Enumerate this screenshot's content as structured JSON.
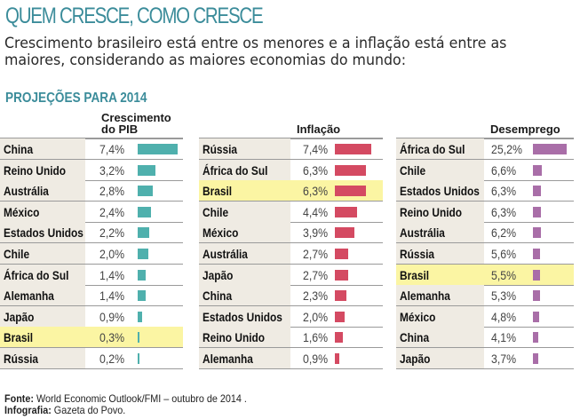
{
  "header": {
    "title": "QUEM CRESCE, COMO CRESCE",
    "subtitle_line1": "Crescimento brasileiro está entre os menores e a inflação está entre as",
    "subtitle_line2": "maiores, considerando as maiores economias do mundo:",
    "section": "PROJEÇÕES PARA 2014"
  },
  "colors": {
    "accent": "#3b8c9a",
    "pib": "#4fb0ad",
    "inflacao": "#d44a62",
    "desemprego": "#a96ea8",
    "highlight": "#fbf5a3",
    "name_bg": "#efebe3"
  },
  "chart_data": [
    {
      "type": "table",
      "title": "Crescimento do PIB",
      "title_line1": "Crescimento",
      "title_line2": "do PIB",
      "unit": "%",
      "highlight": "Brasil",
      "rows": [
        {
          "country": "China",
          "value": 7.4,
          "label": "7,4%"
        },
        {
          "country": "Reino Unido",
          "value": 3.2,
          "label": "3,2%"
        },
        {
          "country": "Austrália",
          "value": 2.8,
          "label": "2,8%"
        },
        {
          "country": "México",
          "value": 2.4,
          "label": "2,4%"
        },
        {
          "country": "Estados Unidos",
          "value": 2.2,
          "label": "2,2%"
        },
        {
          "country": "Chile",
          "value": 2.0,
          "label": "2,0%"
        },
        {
          "country": "África do Sul",
          "value": 1.4,
          "label": "1,4%"
        },
        {
          "country": "Alemanha",
          "value": 1.4,
          "label": "1,4%"
        },
        {
          "country": "Japão",
          "value": 0.9,
          "label": "0,9%"
        },
        {
          "country": "Brasil",
          "value": 0.3,
          "label": "0,3%"
        },
        {
          "country": "Rússia",
          "value": 0.2,
          "label": "0,2%"
        }
      ]
    },
    {
      "type": "table",
      "title": "Inflação",
      "unit": "%",
      "highlight": "Brasil",
      "rows": [
        {
          "country": "Rússia",
          "value": 7.4,
          "label": "7,4%"
        },
        {
          "country": "África do Sul",
          "value": 6.3,
          "label": "6,3%"
        },
        {
          "country": "Brasil",
          "value": 6.3,
          "label": "6,3%"
        },
        {
          "country": "Chile",
          "value": 4.4,
          "label": "4,4%"
        },
        {
          "country": "México",
          "value": 3.9,
          "label": "3,9%"
        },
        {
          "country": "Austrália",
          "value": 2.7,
          "label": "2,7%"
        },
        {
          "country": "Japão",
          "value": 2.7,
          "label": "2,7%"
        },
        {
          "country": "China",
          "value": 2.3,
          "label": "2,3%"
        },
        {
          "country": "Estados Unidos",
          "value": 2.0,
          "label": "2,0%"
        },
        {
          "country": "Reino Unido",
          "value": 1.6,
          "label": "1,6%"
        },
        {
          "country": "Alemanha",
          "value": 0.9,
          "label": "0,9%"
        }
      ]
    },
    {
      "type": "table",
      "title": "Desemprego",
      "unit": "%",
      "highlight": "Brasil",
      "rows": [
        {
          "country": "África do Sul",
          "value": 25.2,
          "label": "25,2%"
        },
        {
          "country": "Chile",
          "value": 6.6,
          "label": "6,6%"
        },
        {
          "country": "Estados Unidos",
          "value": 6.3,
          "label": "6,3%"
        },
        {
          "country": "Reino Unido",
          "value": 6.3,
          "label": "6,3%"
        },
        {
          "country": "Austrália",
          "value": 6.2,
          "label": "6,2%"
        },
        {
          "country": "Rússia",
          "value": 5.6,
          "label": "5,6%"
        },
        {
          "country": "Brasil",
          "value": 5.5,
          "label": "5,5%"
        },
        {
          "country": "Alemanha",
          "value": 5.3,
          "label": "5,3%"
        },
        {
          "country": "México",
          "value": 4.8,
          "label": "4,8%"
        },
        {
          "country": "China",
          "value": 4.1,
          "label": "4,1%"
        },
        {
          "country": "Japão",
          "value": 3.7,
          "label": "3,7%"
        }
      ]
    }
  ],
  "footer": {
    "source_label": "Fonte:",
    "source_text": " World Economic Outlook/FMI – outubro de 2014 .",
    "credit_label": "Infografia:",
    "credit_text": " Gazeta do Povo."
  }
}
